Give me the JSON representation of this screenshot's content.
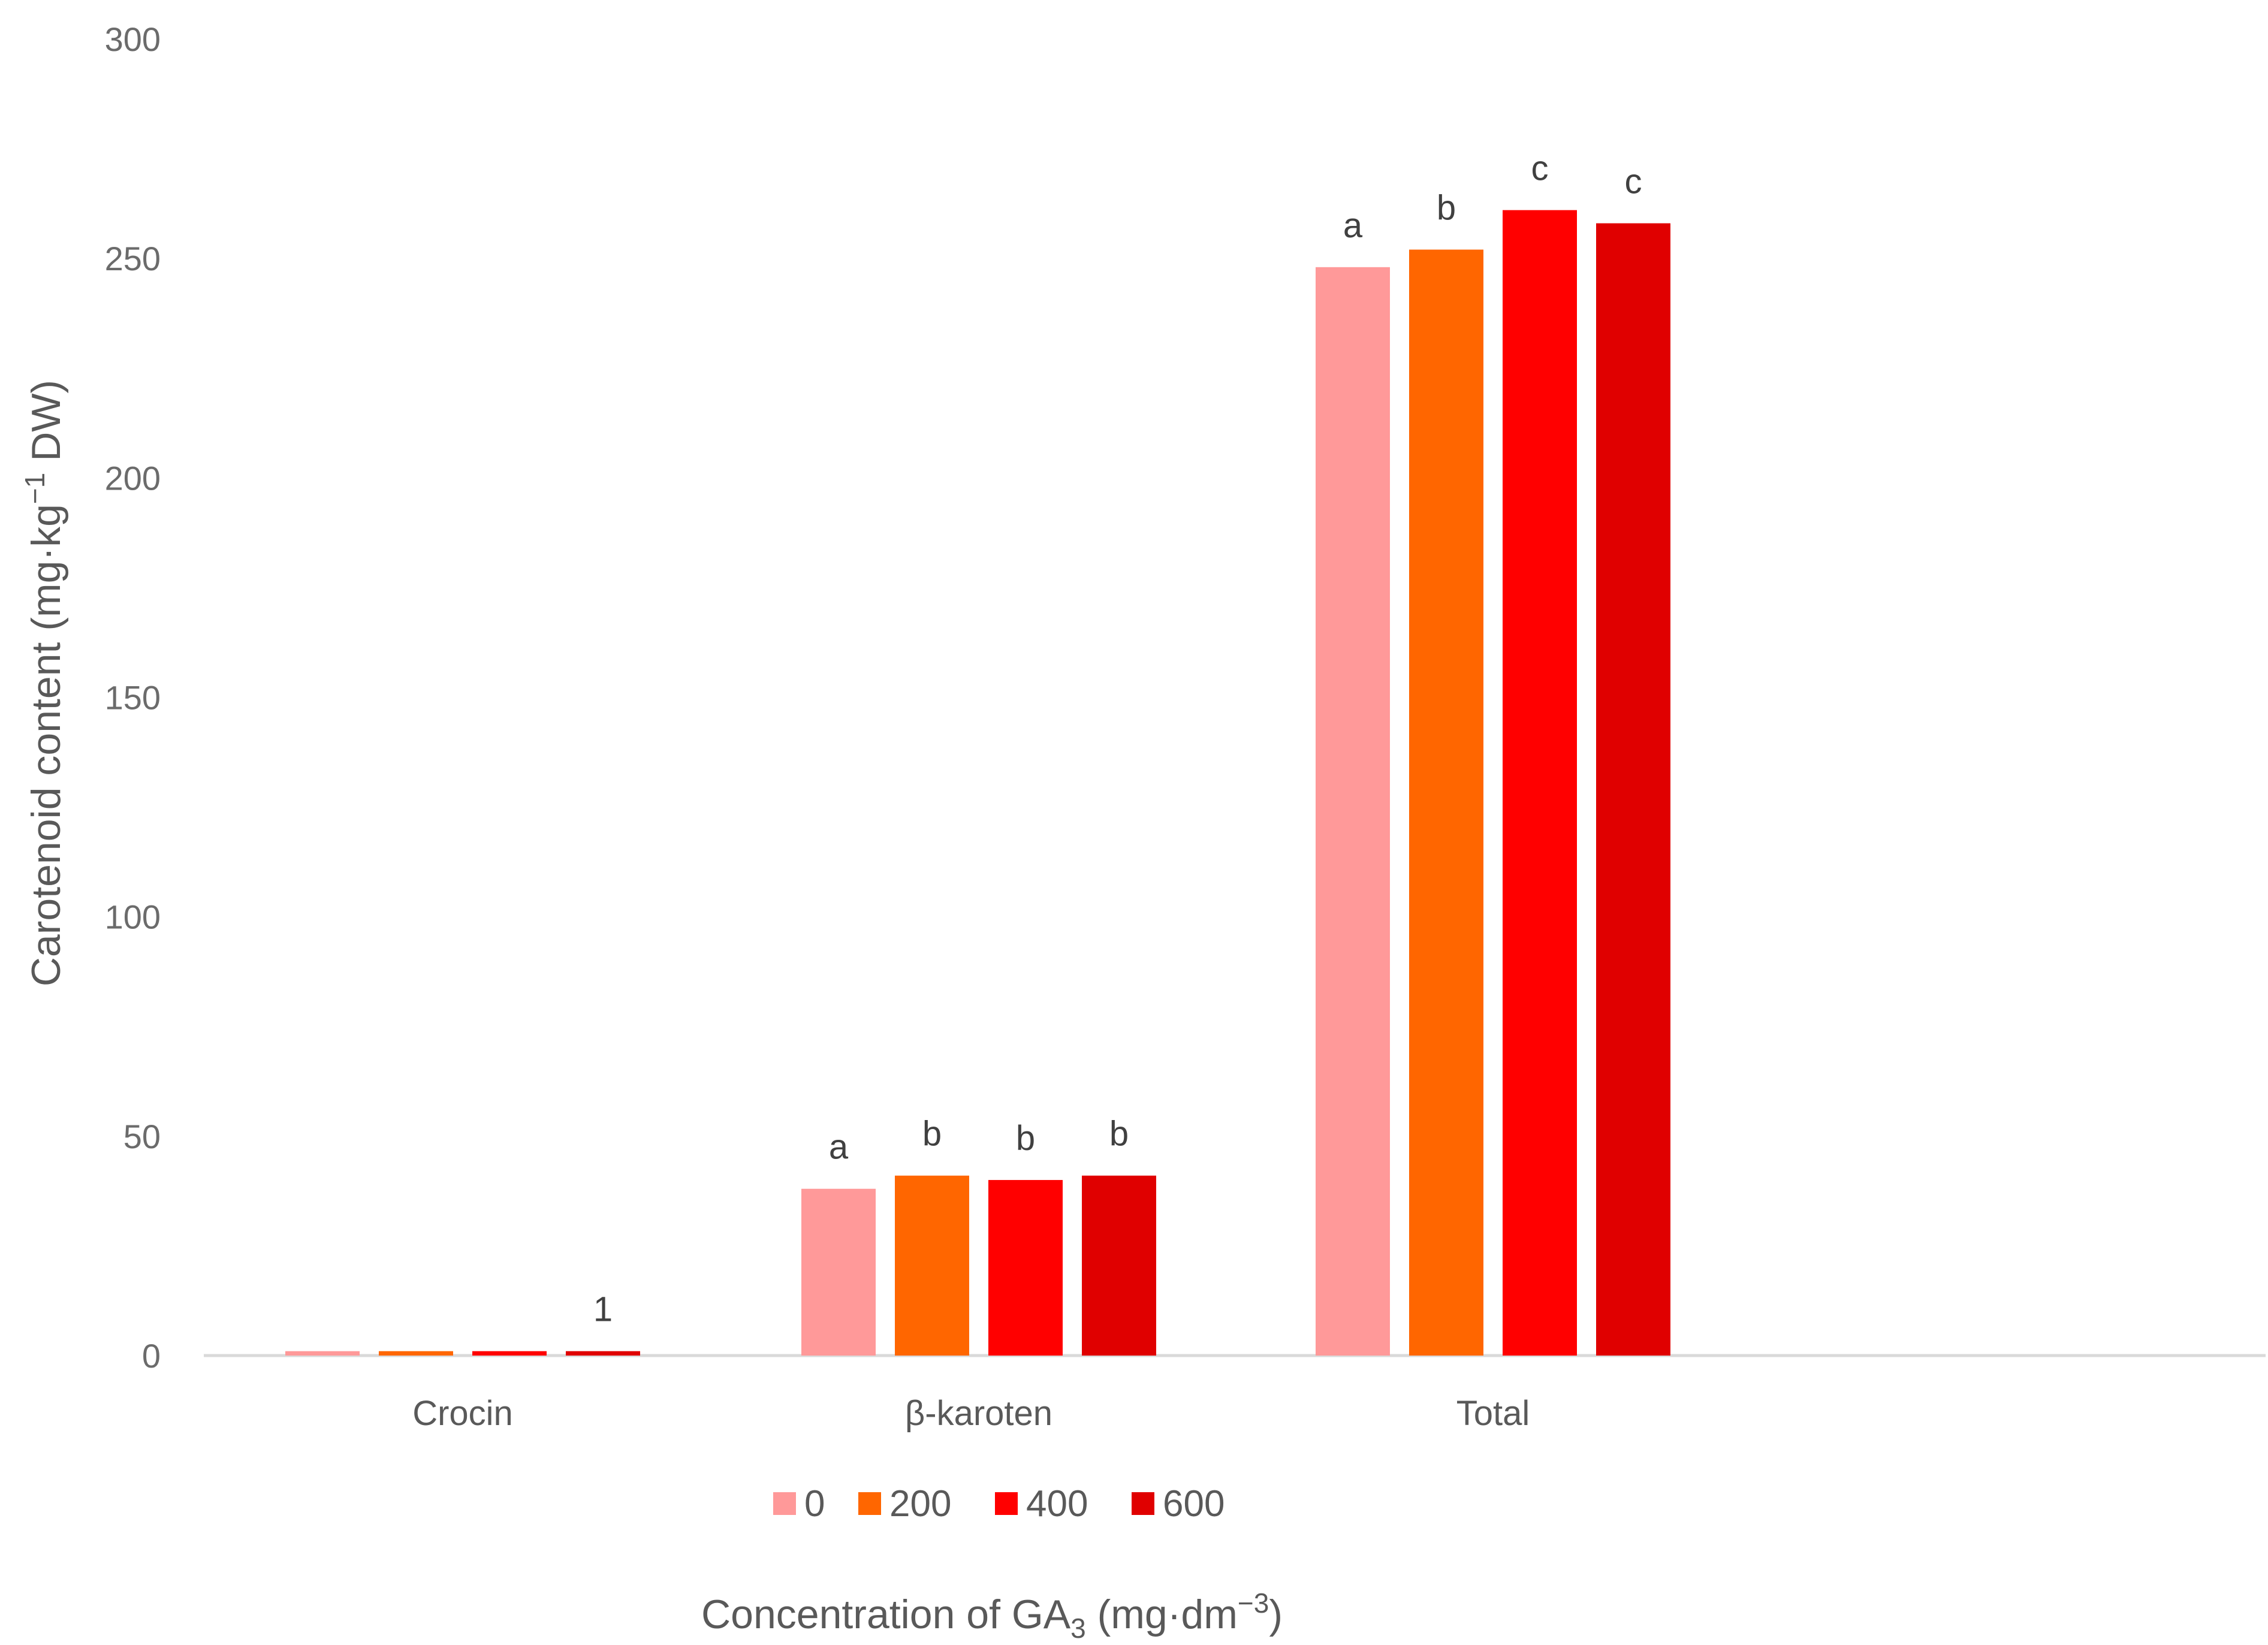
{
  "chart_data": {
    "type": "bar",
    "categories": [
      "Crocin",
      "β-karoten",
      "Total"
    ],
    "series": [
      {
        "name": "0",
        "color": "#ff9999",
        "values": [
          1,
          38,
          248
        ],
        "labels": [
          "",
          "a",
          "a"
        ]
      },
      {
        "name": "200",
        "color": "#ff6600",
        "values": [
          1,
          41,
          252
        ],
        "labels": [
          "",
          "b",
          "b"
        ]
      },
      {
        "name": "400",
        "color": "#ff0000",
        "values": [
          1,
          40,
          261
        ],
        "labels": [
          "",
          "b",
          "c"
        ]
      },
      {
        "name": "600",
        "color": "#e00000",
        "values": [
          1,
          41,
          258
        ],
        "labels": [
          "1",
          "b",
          "c"
        ]
      }
    ],
    "ylim": [
      0,
      300
    ],
    "yticks": [
      0,
      50,
      100,
      150,
      200,
      250,
      300
    ],
    "ylabel": {
      "main": "Carotenoid content (mg·kg",
      "sup": "−1",
      "end": " DW)"
    },
    "xlabel": {
      "main": "Concentration of GA",
      "sub": "3",
      "end": " (mg·dm",
      "sup": "−3",
      "close": ")"
    },
    "grid": false,
    "legend_position": "bottom"
  }
}
